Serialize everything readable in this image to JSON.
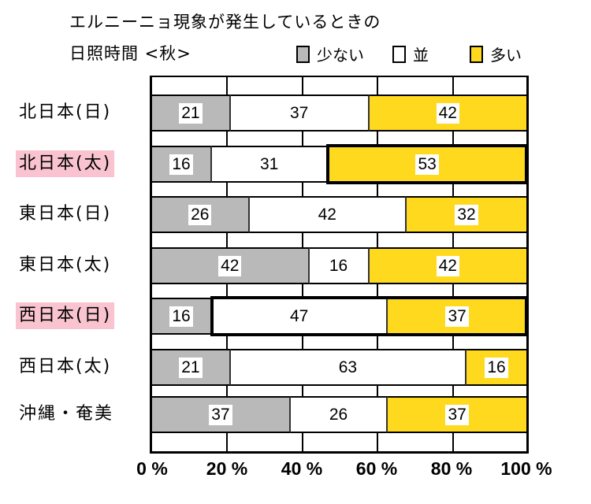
{
  "chart_data": {
    "type": "bar",
    "orientation": "horizontal",
    "stacked": true,
    "percent": true,
    "title": "エルニーニョ現象が発生しているときの日照時間 <秋>",
    "title_lines": [
      "エルニーニョ現象が発生しているときの",
      "日照時間 <秋>"
    ],
    "xlabel": "",
    "ylabel": "",
    "xlim": [
      0,
      100
    ],
    "x_ticks": [
      "0 %",
      "20 %",
      "40 %",
      "60 %",
      "80 %",
      "100 %"
    ],
    "grid": true,
    "legend_position": "top-right",
    "categories": [
      "北日本(日)",
      "北日本(太)",
      "東日本(日)",
      "東日本(太)",
      "西日本(日)",
      "西日本(太)",
      "沖縄・奄美"
    ],
    "highlighted_categories": [
      "北日本(太)",
      "西日本(日)"
    ],
    "series": [
      {
        "name": "少ない",
        "color": "#b9b9b9",
        "values": [
          21,
          16,
          26,
          42,
          16,
          21,
          37
        ]
      },
      {
        "name": "並",
        "color": "#ffffff",
        "values": [
          37,
          31,
          42,
          16,
          47,
          63,
          26
        ]
      },
      {
        "name": "多い",
        "color": "#ffd91e",
        "values": [
          42,
          53,
          32,
          42,
          37,
          16,
          37
        ]
      }
    ],
    "highlight_boxes": [
      {
        "category": "北日本(太)",
        "series": [
          "多い"
        ]
      },
      {
        "category": "西日本(日)",
        "series": [
          "並",
          "多い"
        ]
      }
    ]
  },
  "title": {
    "line1": "エルニーニョ現象が発生しているときの",
    "line2": "日照時間 <秋>"
  },
  "legend": [
    {
      "label": "少ない",
      "color": "#b9b9b9"
    },
    {
      "label": "並",
      "color": "#ffffff"
    },
    {
      "label": "多い",
      "color": "#ffd91e"
    }
  ],
  "rows": [
    {
      "label": "北日本(日)",
      "highlight": false,
      "values": [
        "21",
        "37",
        "42"
      ]
    },
    {
      "label": "北日本(太)",
      "highlight": true,
      "values": [
        "16",
        "31",
        "53"
      ]
    },
    {
      "label": "東日本(日)",
      "highlight": false,
      "values": [
        "26",
        "42",
        "32"
      ]
    },
    {
      "label": "東日本(太)",
      "highlight": false,
      "values": [
        "42",
        "16",
        "42"
      ]
    },
    {
      "label": "西日本(日)",
      "highlight": true,
      "values": [
        "16",
        "47",
        "37"
      ]
    },
    {
      "label": "西日本(太)",
      "highlight": false,
      "values": [
        "21",
        "63",
        "16"
      ]
    },
    {
      "label": "沖縄・奄美",
      "highlight": false,
      "values": [
        "37",
        "26",
        "37"
      ]
    }
  ],
  "axis": {
    "ticks": [
      "0 %",
      "20 %",
      "40 %",
      "60 %",
      "80 %",
      "100 %"
    ]
  },
  "colors": {
    "few": "#b9b9b9",
    "normal": "#ffffff",
    "many": "#ffd91e",
    "label_highlight": "#f9c4cf"
  }
}
